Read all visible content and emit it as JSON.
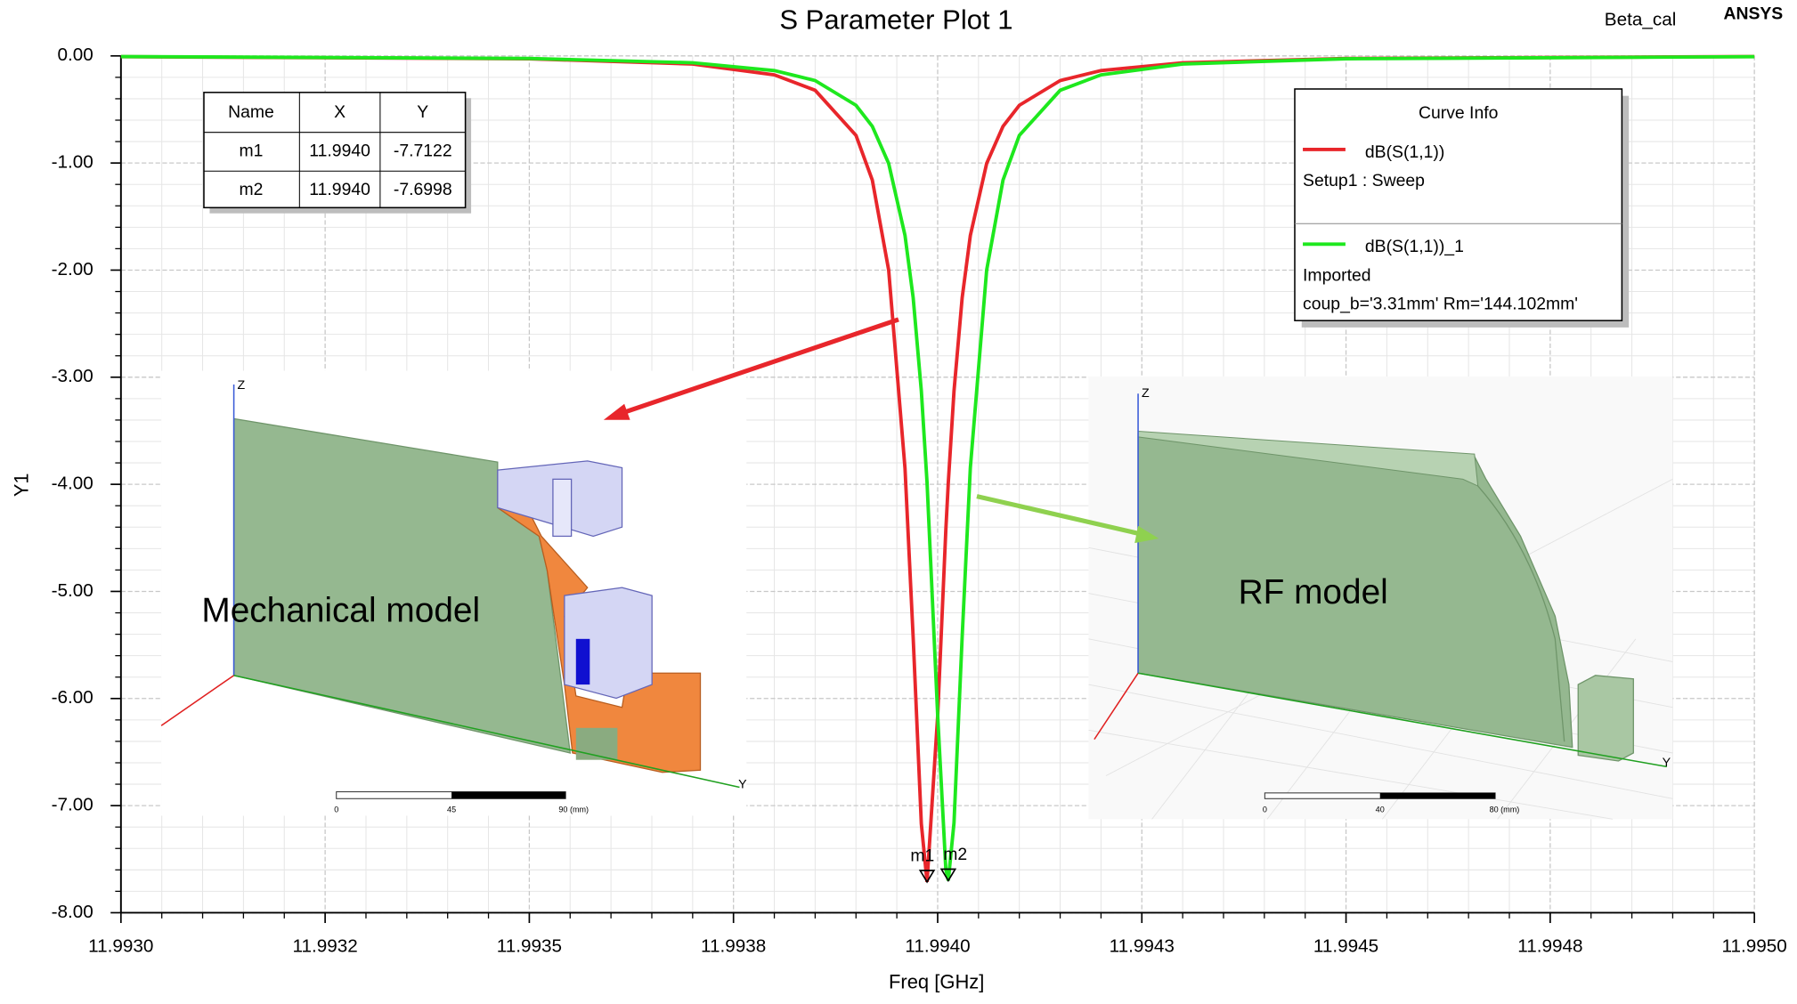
{
  "chart_data": {
    "type": "line",
    "title": "S Parameter Plot 1",
    "subtitle": "Beta_cal",
    "brand": "ANSYS",
    "x_label": "Freq [GHz]",
    "y_label": "Y1",
    "xlim": [
      11.993,
      11.995
    ],
    "xticks": [
      {
        "value": 11.993,
        "label": "11.9930"
      },
      {
        "value": 11.99325,
        "label": "11.9932"
      },
      {
        "value": 11.9935,
        "label": "11.9935"
      },
      {
        "value": 11.99375,
        "label": "11.9938"
      },
      {
        "value": 11.994,
        "label": "11.9940"
      },
      {
        "value": 11.99425,
        "label": "11.9943"
      },
      {
        "value": 11.9945,
        "label": "11.9945"
      },
      {
        "value": 11.99475,
        "label": "11.9948"
      },
      {
        "value": 11.995,
        "label": "11.9950"
      }
    ],
    "ylim": [
      -8,
      0
    ],
    "yticks": [
      {
        "value": 0,
        "label": "0.00"
      },
      {
        "value": -1,
        "label": "-1.00"
      },
      {
        "value": -2,
        "label": "-2.00"
      },
      {
        "value": -3,
        "label": "-3.00"
      },
      {
        "value": -4,
        "label": "-4.00"
      },
      {
        "value": -5,
        "label": "-5.00"
      },
      {
        "value": -6,
        "label": "-6.00"
      },
      {
        "value": -7,
        "label": "-7.00"
      },
      {
        "value": -8,
        "label": "-8.00"
      }
    ],
    "grid": true,
    "legend_title": "Curve Info",
    "legend_position": "upper right",
    "x": [
      11.993,
      11.9935,
      11.9937,
      11.9938,
      11.99385,
      11.9939,
      11.99392,
      11.99394,
      11.99396,
      11.99397,
      11.99398,
      11.993987,
      11.994,
      11.99401,
      11.994013,
      11.99402,
      11.99403,
      11.99404,
      11.99406,
      11.99408,
      11.9941,
      11.99415,
      11.9942,
      11.9943,
      11.9945,
      11.995
    ],
    "series": [
      {
        "name": "dB(S(1,1))",
        "color": "#e8262b",
        "source": [
          "Setup1 : Sweep"
        ],
        "values": [
          -0.007,
          -0.027,
          -0.076,
          -0.177,
          -0.321,
          -0.742,
          -1.16,
          -1.999,
          -3.85,
          -5.43,
          -7.17,
          -7.7122,
          -6.162,
          -4.425,
          -3.986,
          -3.13,
          -2.258,
          -1.677,
          -1.004,
          -0.658,
          -0.461,
          -0.23,
          -0.137,
          -0.064,
          -0.024,
          -0.006
        ]
      },
      {
        "name": "dB(S(1,1))_1",
        "color": "#1ee81e",
        "source": [
          "Imported",
          "coup_b='3.31mm' Rm='144.102mm'"
        ],
        "values": [
          -0.006,
          -0.024,
          -0.064,
          -0.137,
          -0.23,
          -0.461,
          -0.658,
          -1.004,
          -1.676,
          -2.257,
          -3.128,
          -3.983,
          -6.155,
          -7.594,
          -7.6998,
          -7.161,
          -5.424,
          -3.846,
          -1.999,
          -1.16,
          -0.742,
          -0.321,
          -0.177,
          -0.076,
          -0.027,
          -0.007
        ]
      }
    ],
    "markers": {
      "columns": [
        "Name",
        "X",
        "Y"
      ],
      "rows": [
        [
          "m1",
          "11.9940",
          "-7.7122"
        ],
        [
          "m2",
          "11.9940",
          "-7.6998"
        ]
      ]
    },
    "insets": [
      {
        "label": "Mechanical model",
        "axes": [
          "Z",
          "Y"
        ],
        "scale": [
          "0",
          "45",
          "90 (mm)"
        ]
      },
      {
        "label": "RF model",
        "axes": [
          "Z",
          "Y"
        ],
        "scale": [
          "0",
          "40",
          "80 (mm)"
        ]
      }
    ]
  }
}
